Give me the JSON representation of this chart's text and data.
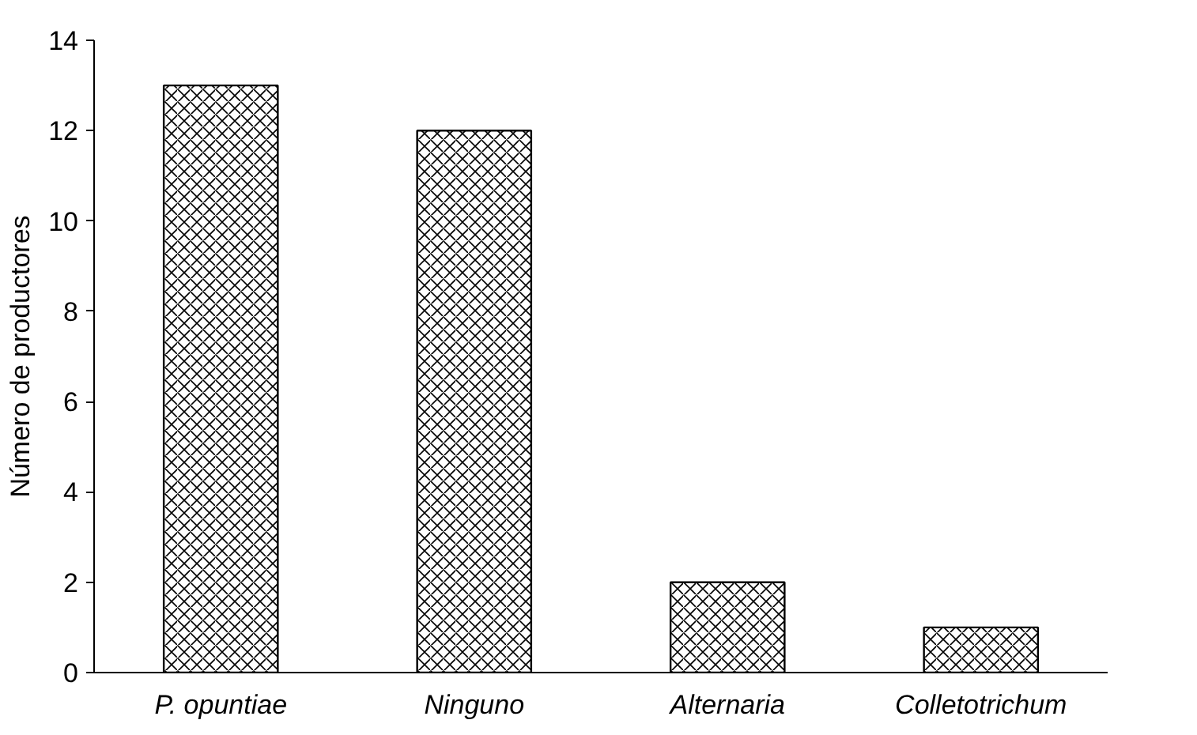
{
  "chart_data": {
    "type": "bar",
    "ylabel": "Número de productores",
    "categories": [
      "P. opuntiae",
      "Ninguno",
      "Alternaria",
      "Colletotrichum"
    ],
    "values": [
      13,
      12,
      2,
      1
    ],
    "color": "#000000",
    "ylim": [
      0,
      14
    ],
    "yticks": [
      0,
      2,
      4,
      6,
      8,
      10,
      12,
      14
    ],
    "grid": false
  }
}
